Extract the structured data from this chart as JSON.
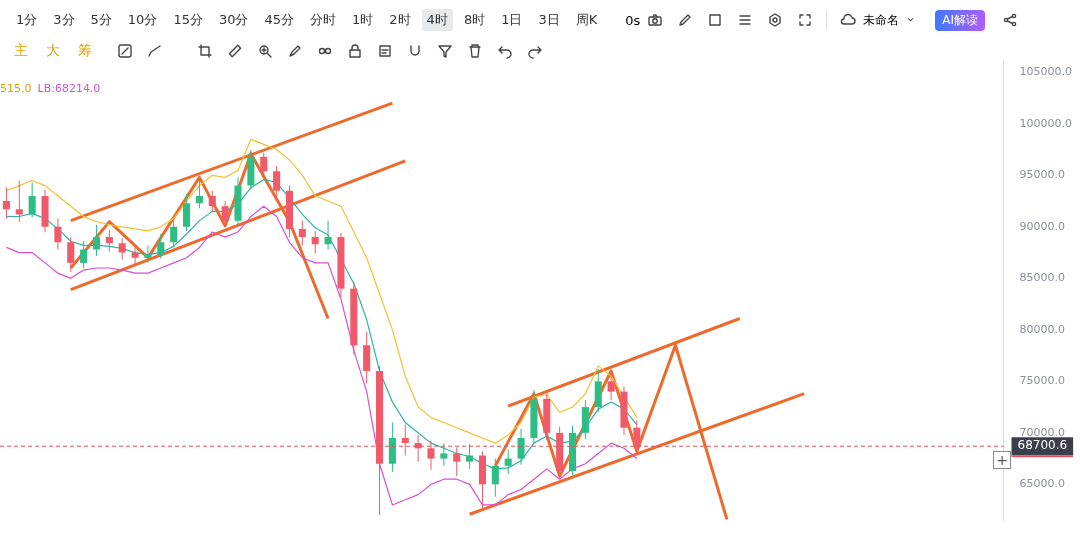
{
  "chart_data": {
    "type": "candlestick",
    "categories": [
      null,
      null,
      null,
      null,
      null,
      null,
      null,
      null,
      null,
      null,
      null,
      null,
      null,
      null,
      null,
      null,
      null,
      null,
      null,
      null,
      null,
      null,
      null,
      null,
      null,
      null,
      null,
      null,
      null,
      null,
      null,
      null,
      null,
      null,
      null,
      null,
      null,
      null,
      null,
      null,
      null,
      null,
      null,
      null,
      null,
      null,
      null,
      null,
      null,
      null,
      null,
      null,
      null,
      null,
      null,
      null,
      null,
      null,
      null,
      null,
      null,
      null,
      null,
      null,
      null,
      null,
      null,
      null,
      null,
      null,
      null,
      null,
      null,
      null,
      null,
      null,
      null,
      null
    ],
    "ohlc": [
      [
        92500,
        93800,
        90800,
        91700
      ],
      [
        91700,
        94500,
        90500,
        91200
      ],
      [
        91200,
        94300,
        90900,
        93000
      ],
      [
        93000,
        93600,
        89500,
        90000
      ],
      [
        90000,
        90800,
        87800,
        88500
      ],
      [
        88500,
        89000,
        85600,
        86500
      ],
      [
        86500,
        88600,
        86000,
        87800
      ],
      [
        87800,
        90200,
        87200,
        89000
      ],
      [
        89000,
        89700,
        87600,
        88400
      ],
      [
        88400,
        88900,
        86800,
        87500
      ],
      [
        87500,
        88000,
        86200,
        87000
      ],
      [
        87000,
        88200,
        86500,
        87300
      ],
      [
        87300,
        89300,
        86900,
        88500
      ],
      [
        88500,
        90800,
        88000,
        90000
      ],
      [
        90000,
        93200,
        89600,
        92300
      ],
      [
        92300,
        94600,
        91800,
        93000
      ],
      [
        93000,
        93500,
        91400,
        92000
      ],
      [
        92000,
        92500,
        90000,
        90600
      ],
      [
        90600,
        94800,
        90200,
        94000
      ],
      [
        94000,
        97500,
        93600,
        96800
      ],
      [
        96800,
        97200,
        94800,
        95400
      ],
      [
        95400,
        95900,
        92800,
        93500
      ],
      [
        93500,
        94000,
        89000,
        89800
      ],
      [
        89800,
        90600,
        88200,
        89000
      ],
      [
        89000,
        89600,
        87400,
        88300
      ],
      [
        88300,
        90600,
        87800,
        89000
      ],
      [
        89000,
        89400,
        83200,
        84000
      ],
      [
        84000,
        84600,
        77600,
        78500
      ],
      [
        78500,
        79800,
        74800,
        76000
      ],
      [
        76000,
        76500,
        62000,
        67000
      ],
      [
        67000,
        71000,
        66200,
        69500
      ],
      [
        69500,
        70800,
        67800,
        69000
      ],
      [
        69000,
        69800,
        67200,
        68500
      ],
      [
        68500,
        69200,
        66400,
        67500
      ],
      [
        67500,
        69000,
        66800,
        68000
      ],
      [
        68000,
        68600,
        65800,
        67200
      ],
      [
        67200,
        68900,
        66500,
        67800
      ],
      [
        67800,
        68200,
        62700,
        65000
      ],
      [
        65000,
        67500,
        63800,
        66800
      ],
      [
        66800,
        68400,
        66000,
        67500
      ],
      [
        67500,
        70400,
        66900,
        69500
      ],
      [
        69500,
        74200,
        69000,
        73300
      ],
      [
        73300,
        73900,
        69300,
        70000
      ],
      [
        70000,
        70600,
        65600,
        66300
      ],
      [
        66300,
        70700,
        65900,
        70000
      ],
      [
        70000,
        73200,
        69400,
        72500
      ],
      [
        72500,
        76200,
        72000,
        75000
      ],
      [
        75000,
        75600,
        73200,
        74000
      ],
      [
        74000,
        74500,
        69800,
        70500
      ],
      [
        70500,
        71200,
        68000,
        68700
      ],
      null,
      null,
      null,
      null,
      null,
      null,
      null,
      null,
      null,
      null,
      null,
      null,
      null,
      null,
      null,
      null,
      null,
      null,
      null,
      null,
      null,
      null,
      null,
      null,
      null,
      null,
      null,
      null
    ],
    "series": [
      {
        "type": "line",
        "color": "#f2c230",
        "values": [
          93500,
          94000,
          94500,
          94000,
          93000,
          92000,
          91000,
          90500,
          90200,
          90000,
          89800,
          89600,
          90000,
          90800,
          92500,
          94000,
          95000,
          94800,
          95500,
          98500,
          98000,
          97500,
          96500,
          95000,
          93000,
          92500,
          92000,
          89500,
          87000,
          83500,
          80000,
          75500,
          72500,
          71500,
          71000,
          70500,
          70000,
          69500,
          69000,
          69800,
          71000,
          73500,
          73700,
          72000,
          72500,
          73800,
          76500,
          75500,
          null,
          71500,
          null,
          null,
          null,
          null,
          null,
          null,
          null,
          null,
          null,
          null,
          null,
          null,
          null,
          null,
          null,
          null,
          null,
          null,
          null,
          null,
          null,
          null,
          null,
          null,
          null,
          null,
          null,
          null
        ]
      },
      {
        "type": "line",
        "color": "#2bb5a5",
        "values": [
          91000,
          91000,
          91300,
          90800,
          89800,
          88600,
          88200,
          88200,
          88100,
          87900,
          87500,
          87300,
          87500,
          88100,
          89300,
          90600,
          91500,
          91500,
          92200,
          93800,
          94600,
          94300,
          92800,
          91200,
          89900,
          89200,
          null,
          84500,
          81000,
          76000,
          73000,
          71000,
          70000,
          69000,
          68500,
          68000,
          67700,
          67000,
          66500,
          66600,
          67300,
          69000,
          69700,
          69000,
          69200,
          70500,
          72300,
          73000,
          72300,
          70800,
          null,
          null,
          null,
          null,
          null,
          null,
          null,
          null,
          null,
          null,
          null,
          null,
          null,
          null,
          null,
          null,
          null,
          null,
          null,
          null,
          null,
          null,
          null,
          null,
          null,
          null,
          null,
          null
        ]
      },
      {
        "type": "line",
        "color": "#d94fd0",
        "values": [
          88000,
          87500,
          87500,
          86500,
          85500,
          85000,
          85800,
          86000,
          86000,
          85800,
          85500,
          85500,
          86000,
          86500,
          87000,
          88000,
          89500,
          89000,
          89500,
          91000,
          92000,
          91000,
          88500,
          87000,
          86500,
          86500,
          83000,
          78000,
          74000,
          67000,
          63000,
          63500,
          64000,
          65000,
          65500,
          65500,
          65000,
          63000,
          63000,
          64000,
          64500,
          65500,
          66500,
          65500,
          66500,
          67000,
          68000,
          69000,
          68500,
          67500,
          null,
          null,
          null,
          null,
          null,
          null,
          null,
          null,
          null,
          null,
          null,
          null,
          null,
          null,
          null,
          null,
          null,
          null,
          null,
          null,
          null,
          null,
          null,
          null,
          null,
          null,
          null,
          null
        ]
      },
      {
        "type": "line",
        "color": "#ee6a2c",
        "values": [
          null,
          null,
          null,
          null,
          null,
          90600,
          null,
          null,
          null,
          null,
          null,
          null,
          null,
          null,
          null,
          null,
          null,
          null,
          null,
          null,
          null,
          null,
          null,
          null,
          null,
          null,
          null,
          null,
          null,
          null,
          102000,
          null,
          null,
          null,
          null,
          null,
          null,
          null,
          null,
          null,
          null,
          null,
          null,
          null,
          null,
          null,
          null,
          null,
          null,
          null,
          null,
          null,
          null,
          null,
          null,
          null,
          null,
          null,
          null,
          null,
          null,
          null,
          null,
          null,
          null,
          null,
          null,
          null,
          null,
          null,
          null,
          null,
          null,
          null,
          null,
          null,
          null,
          null
        ]
      },
      {
        "type": "line",
        "color": "#ee6a2c",
        "values": [
          null,
          null,
          null,
          null,
          null,
          83900,
          null,
          null,
          null,
          null,
          null,
          null,
          null,
          null,
          null,
          null,
          null,
          null,
          null,
          null,
          null,
          null,
          null,
          null,
          null,
          null,
          null,
          null,
          null,
          null,
          null,
          96400,
          null,
          null,
          null,
          null,
          null,
          null,
          null,
          null,
          null,
          null,
          null,
          null,
          null,
          null,
          null,
          null,
          null,
          null,
          null,
          null,
          null,
          null,
          null,
          null,
          null,
          null,
          null,
          null,
          null,
          null,
          null,
          null,
          null,
          null,
          null,
          null,
          null,
          null,
          null,
          null,
          null,
          null,
          null,
          null,
          null,
          null
        ]
      },
      {
        "type": "line",
        "color": "#ee6a2c",
        "values": [
          null,
          null,
          null,
          null,
          null,
          86000,
          null,
          null,
          90500,
          null,
          null,
          87000,
          null,
          null,
          null,
          94800,
          null,
          90100,
          null,
          97100,
          null,
          null,
          90500,
          null,
          null,
          81100,
          null,
          null,
          null,
          null,
          null,
          null,
          null,
          null,
          null,
          null,
          null,
          null,
          null,
          null,
          null,
          null,
          null,
          null,
          null,
          null,
          null,
          null,
          null,
          null,
          null,
          null,
          null,
          null,
          null,
          null,
          null,
          null,
          null,
          null,
          null,
          null,
          null,
          null,
          null,
          null,
          null,
          null,
          null,
          null,
          null,
          null,
          null,
          null,
          null,
          null,
          null,
          null
        ]
      },
      {
        "type": "line",
        "color": "#ee6a2c",
        "values": [
          null,
          null,
          null,
          null,
          null,
          null,
          null,
          null,
          null,
          null,
          null,
          null,
          null,
          null,
          null,
          null,
          null,
          null,
          null,
          null,
          null,
          null,
          null,
          null,
          null,
          null,
          null,
          null,
          null,
          null,
          null,
          null,
          null,
          null,
          null,
          null,
          null,
          null,
          null,
          72600,
          null,
          null,
          null,
          null,
          null,
          null,
          null,
          null,
          null,
          null,
          null,
          null,
          null,
          null,
          null,
          null,
          null,
          81100,
          null,
          null,
          null,
          null,
          null,
          null,
          null,
          null,
          null,
          null,
          null,
          null,
          null,
          null,
          null,
          null,
          null,
          null,
          null,
          null
        ]
      },
      {
        "type": "line",
        "color": "#ee6a2c",
        "values": [
          null,
          null,
          null,
          null,
          null,
          null,
          null,
          null,
          null,
          null,
          null,
          null,
          null,
          null,
          null,
          null,
          null,
          null,
          null,
          null,
          null,
          null,
          null,
          null,
          null,
          null,
          null,
          null,
          null,
          null,
          null,
          null,
          null,
          null,
          null,
          null,
          62100,
          null,
          null,
          null,
          null,
          null,
          null,
          null,
          null,
          null,
          null,
          null,
          null,
          null,
          null,
          null,
          null,
          null,
          null,
          null,
          null,
          null,
          null,
          null,
          null,
          null,
          73800,
          null,
          null,
          null,
          null,
          null,
          null,
          null,
          null,
          null,
          null,
          null,
          null,
          null,
          null,
          null
        ]
      },
      {
        "type": "line",
        "color": "#ee6a2c",
        "values": [
          null,
          null,
          null,
          null,
          null,
          null,
          null,
          null,
          null,
          null,
          null,
          null,
          null,
          null,
          null,
          null,
          null,
          null,
          null,
          null,
          null,
          null,
          null,
          null,
          null,
          null,
          null,
          null,
          null,
          null,
          null,
          null,
          null,
          null,
          null,
          null,
          null,
          null,
          66800,
          null,
          null,
          73800,
          null,
          65800,
          null,
          null,
          null,
          76000,
          null,
          68200,
          null,
          null,
          78500,
          null,
          null,
          null,
          61600,
          null,
          null,
          null,
          null,
          null,
          null,
          null,
          null,
          null,
          null,
          null,
          null,
          null,
          null,
          null,
          null,
          null,
          null,
          null,
          null,
          null
        ]
      }
    ],
    "ylim": [
      61500,
      106000
    ],
    "yticks": [
      {
        "value": 65000,
        "label": "65000.0"
      },
      {
        "value": 70000,
        "label": "70000.0"
      },
      {
        "value": 75000,
        "label": "75000.0"
      },
      {
        "value": 80000,
        "label": "80000.0"
      },
      {
        "value": 85000,
        "label": "85000.0"
      },
      {
        "value": 90000,
        "label": "90000.0"
      },
      {
        "value": 95000,
        "label": "95000.0"
      },
      {
        "value": 100000,
        "label": "100000.0"
      },
      {
        "value": 105000,
        "label": "105000.0"
      }
    ],
    "tick_labels": "y",
    "ref_lines": [
      {
        "axis": "y",
        "value": 68700.6,
        "label": "68700.6",
        "color": "#e0525f",
        "line_style": "dashed"
      }
    ],
    "annotations": [
      "+",
      "1分",
      "3分",
      "5分",
      "10分",
      "15分",
      "30分",
      "45分",
      "分时",
      "1时",
      "2时",
      "4时",
      "8时",
      "1日",
      "3日",
      "周K",
      "0s",
      "未命名",
      "AI解读",
      "主",
      "大",
      "筹",
      "515.0",
      "LB:68214.0"
    ]
  }
}
